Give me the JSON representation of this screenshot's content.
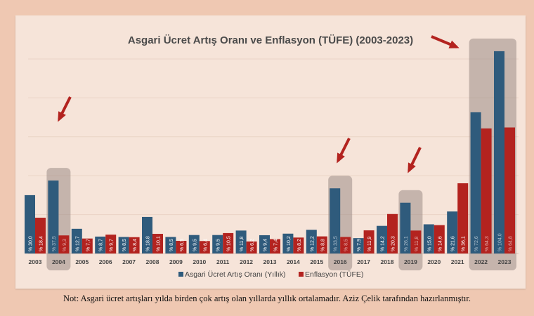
{
  "chart_data": {
    "type": "bar",
    "title": "Asgari Ücret Artış Oranı ve Enflasyon (TÜFE) (2003-2023)",
    "categories": [
      "2003",
      "2004",
      "2005",
      "2006",
      "2007",
      "2008",
      "2009",
      "2010",
      "2011",
      "2012",
      "2013",
      "2014",
      "2015",
      "2016",
      "2017",
      "2018",
      "2019",
      "2020",
      "2021",
      "2022",
      "2023"
    ],
    "series": [
      {
        "name": "Asgari Ücret Artış Oranı (Yıllık)",
        "color": "#2f5b7c",
        "values": [
          30.0,
          37.5,
          12.7,
          8.7,
          8.5,
          18.8,
          8.5,
          9.5,
          9.5,
          11.8,
          9.4,
          10.2,
          12.2,
          33.5,
          7.9,
          14.2,
          26.1,
          15.0,
          21.6,
          72.6,
          104.0
        ]
      },
      {
        "name": "Enflasyon (TÜFE)",
        "color": "#b3231f",
        "values": [
          18.4,
          9.3,
          7.7,
          9.7,
          8.4,
          10.1,
          6.5,
          6.4,
          10.5,
          6.2,
          7.4,
          8.2,
          8.8,
          8.5,
          11.9,
          20.3,
          11.8,
          14.6,
          36.1,
          64.3,
          64.8
        ]
      }
    ],
    "label_prefix": "% ",
    "decimal_separator": ",",
    "highlighted_categories": [
      "2004",
      "2016",
      "2019",
      "2022",
      "2023"
    ],
    "ylim": [
      0,
      110
    ],
    "grid": true,
    "legend": "bottom"
  },
  "note": "Not: Asgari ücret artışları yılda birden çok artış olan yıllarda yıllık ortalamadır. Aziz Çelik tarafından hazırlanmıştır."
}
